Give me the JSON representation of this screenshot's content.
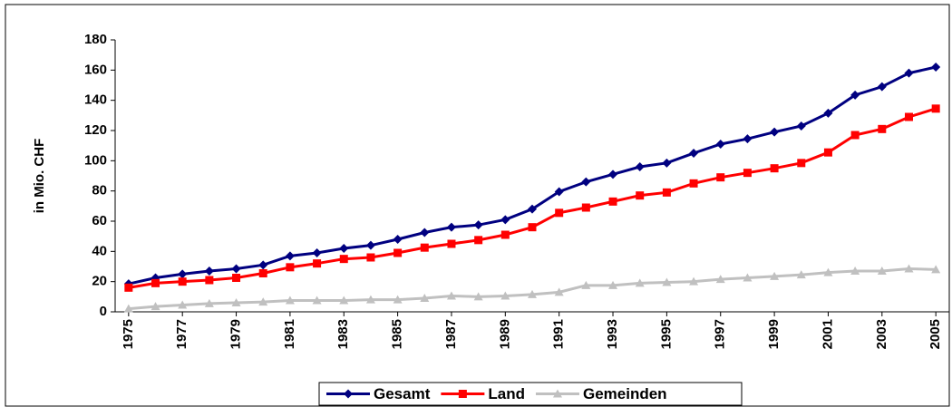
{
  "chart_data": {
    "type": "line",
    "y_label": "in Mio. CHF",
    "x": [
      1975,
      1976,
      1977,
      1978,
      1979,
      1980,
      1981,
      1982,
      1983,
      1984,
      1985,
      1986,
      1987,
      1988,
      1989,
      1990,
      1991,
      1992,
      1993,
      1994,
      1995,
      1996,
      1997,
      1998,
      1999,
      2000,
      2001,
      2002,
      2003,
      2004,
      2005
    ],
    "xlim": [
      1974.5,
      2005.5
    ],
    "xticks": [
      1975,
      1977,
      1979,
      1981,
      1983,
      1985,
      1987,
      1989,
      1991,
      1993,
      1995,
      1997,
      1999,
      2001,
      2003,
      2005
    ],
    "ylim": [
      0,
      180
    ],
    "yticks": [
      0,
      20,
      40,
      60,
      80,
      100,
      120,
      140,
      160,
      180
    ],
    "legend": "bottom",
    "series": [
      {
        "name": "Gesamt",
        "color": "#000080",
        "marker": "diamond",
        "values": [
          18.5,
          22.5,
          25,
          27,
          28.5,
          31,
          37,
          39,
          42,
          44,
          48,
          52.5,
          56,
          57.5,
          61,
          68,
          79.5,
          86,
          91,
          96,
          98.5,
          105,
          111,
          114.5,
          119,
          123,
          131.5,
          143.5,
          149,
          158,
          162
        ]
      },
      {
        "name": "Land",
        "color": "#ff0000",
        "marker": "square",
        "values": [
          16,
          19,
          20,
          21,
          22.5,
          25.5,
          29.5,
          32,
          35,
          36,
          39,
          42.5,
          45,
          47.5,
          51,
          56,
          65.5,
          69,
          73,
          77,
          79,
          85,
          89,
          92,
          95,
          98.5,
          105.5,
          117,
          121,
          129,
          134.5
        ]
      },
      {
        "name": "Gemeinden",
        "color": "#c0c0c0",
        "marker": "triangle",
        "values": [
          2,
          3.5,
          4.5,
          5.5,
          6,
          6.5,
          7.5,
          7.5,
          7.5,
          8,
          8,
          9,
          10.5,
          10,
          10.5,
          11.5,
          13,
          17.5,
          17.5,
          19,
          19.5,
          20,
          21.5,
          22.5,
          23.5,
          24.5,
          26,
          27,
          27,
          28.5,
          28
        ]
      }
    ]
  }
}
